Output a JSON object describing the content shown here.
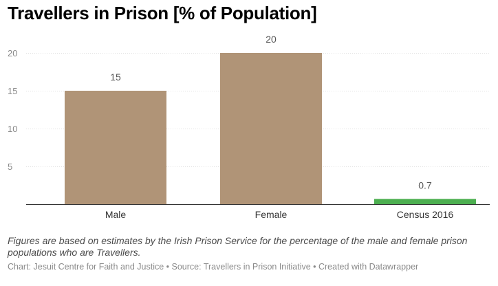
{
  "chart_data": {
    "type": "bar",
    "title": "Travellers in Prison [% of Population]",
    "categories": [
      "Male",
      "Female",
      "Census 2016"
    ],
    "values": [
      15,
      20,
      0.7
    ],
    "colors": [
      "#b09477",
      "#b09477",
      "#4caf50"
    ],
    "value_labels": [
      "15",
      "20",
      "0.7"
    ],
    "yticks": [
      5,
      10,
      15,
      20
    ],
    "ylim": [
      0,
      22
    ],
    "grid": true
  },
  "notes": "Figures are based on estimates by the Irish Prison Service for the percentage of the male and female prison populations who are Travellers.",
  "byline": "Chart: Jesuit Centre for Faith and Justice • Source: Travellers in Prison Initiative • Created with Datawrapper"
}
